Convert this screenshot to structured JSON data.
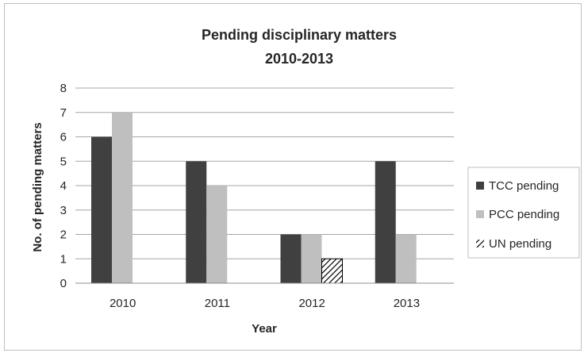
{
  "chart_data": {
    "type": "bar",
    "title": "Pending disciplinary matters",
    "subtitle": "2010-2013",
    "xlabel": "Year",
    "ylabel": "No. of pending matters",
    "ylim": [
      0,
      8
    ],
    "yticks": [
      0,
      1,
      2,
      3,
      4,
      5,
      6,
      7,
      8
    ],
    "grid": true,
    "legend_position": "right",
    "categories": [
      "2010",
      "2011",
      "2012",
      "2013"
    ],
    "series": [
      {
        "name": "TCC pending",
        "values": [
          6,
          5,
          2,
          5
        ],
        "color": "#404040",
        "pattern": "solid"
      },
      {
        "name": "PCC pending",
        "values": [
          7,
          4,
          2,
          2
        ],
        "color": "#bfbfbf",
        "pattern": "solid"
      },
      {
        "name": "UN pending",
        "values": [
          0,
          0,
          1,
          0
        ],
        "color": "#000000",
        "pattern": "hatch"
      }
    ]
  }
}
